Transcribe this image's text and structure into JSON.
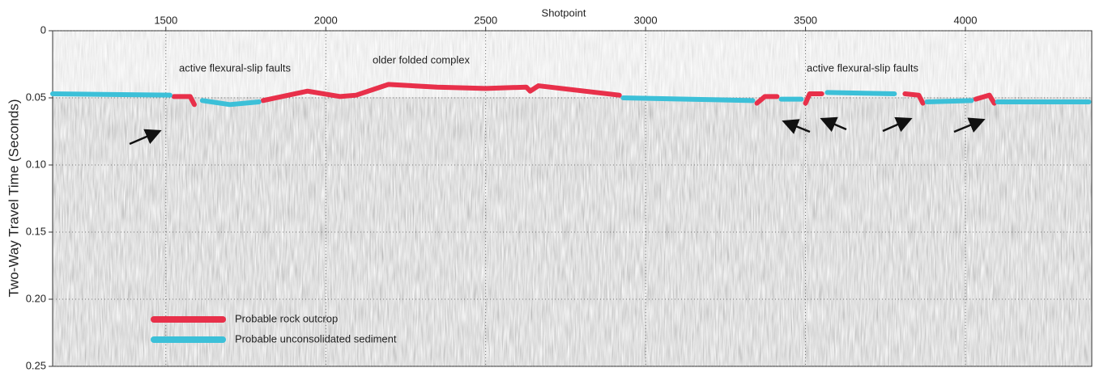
{
  "chart_data": {
    "type": "line",
    "x_label": "Shotpoint",
    "y_label": "Two-Way Travel Time (Seconds)",
    "xlim": [
      1146,
      4395
    ],
    "ylim": [
      0,
      0.25
    ],
    "xticks": [
      1500,
      2000,
      2500,
      3000,
      3500,
      4000
    ],
    "yticks": [
      0,
      0.05,
      {
        "value": 0.1,
        "label": "0.10"
      },
      0.15,
      {
        "value": 0.2,
        "label": "0.20"
      },
      0.25
    ],
    "grid": true,
    "legend": "lower left",
    "annotations": [
      "active flexural-slip faults",
      "older folded complex",
      "active flexural-slip faults"
    ],
    "series": [
      {
        "name": "Probable rock outcrop",
        "color": "#e8304a",
        "x": [
          1525,
          1576,
          1589,
          null,
          1804,
          1943,
          2044,
          2095,
          2196,
          2348,
          2500,
          2627,
          2639,
          2665,
          2918,
          null,
          3348,
          3373,
          3411,
          null,
          3500,
          3513,
          3551,
          null,
          3811,
          3854,
          3867,
          null,
          4032,
          4075,
          4090
        ],
        "values": [
          0.049,
          0.049,
          0.055,
          null,
          0.052,
          0.045,
          0.049,
          0.048,
          0.04,
          0.042,
          0.043,
          0.042,
          0.045,
          0.041,
          0.048,
          null,
          0.054,
          0.049,
          0.049,
          null,
          0.054,
          0.047,
          0.047,
          null,
          0.047,
          0.048,
          0.054,
          null,
          0.051,
          0.048,
          0.054
        ]
      },
      {
        "name": "Probable unconsolidated sediment",
        "color": "#3cc0d8",
        "x": [
          1146,
          1513,
          null,
          1614,
          1700,
          1791,
          null,
          2930,
          3335,
          null,
          3424,
          3487,
          null,
          3568,
          3778,
          null,
          3880,
          4019,
          null,
          4100,
          4386
        ],
        "values": [
          0.047,
          0.048,
          null,
          0.052,
          0.055,
          0.053,
          null,
          0.05,
          0.052,
          null,
          0.051,
          0.051,
          null,
          0.046,
          0.047,
          null,
          0.053,
          0.052,
          null,
          0.053,
          0.053
        ]
      }
    ]
  }
}
